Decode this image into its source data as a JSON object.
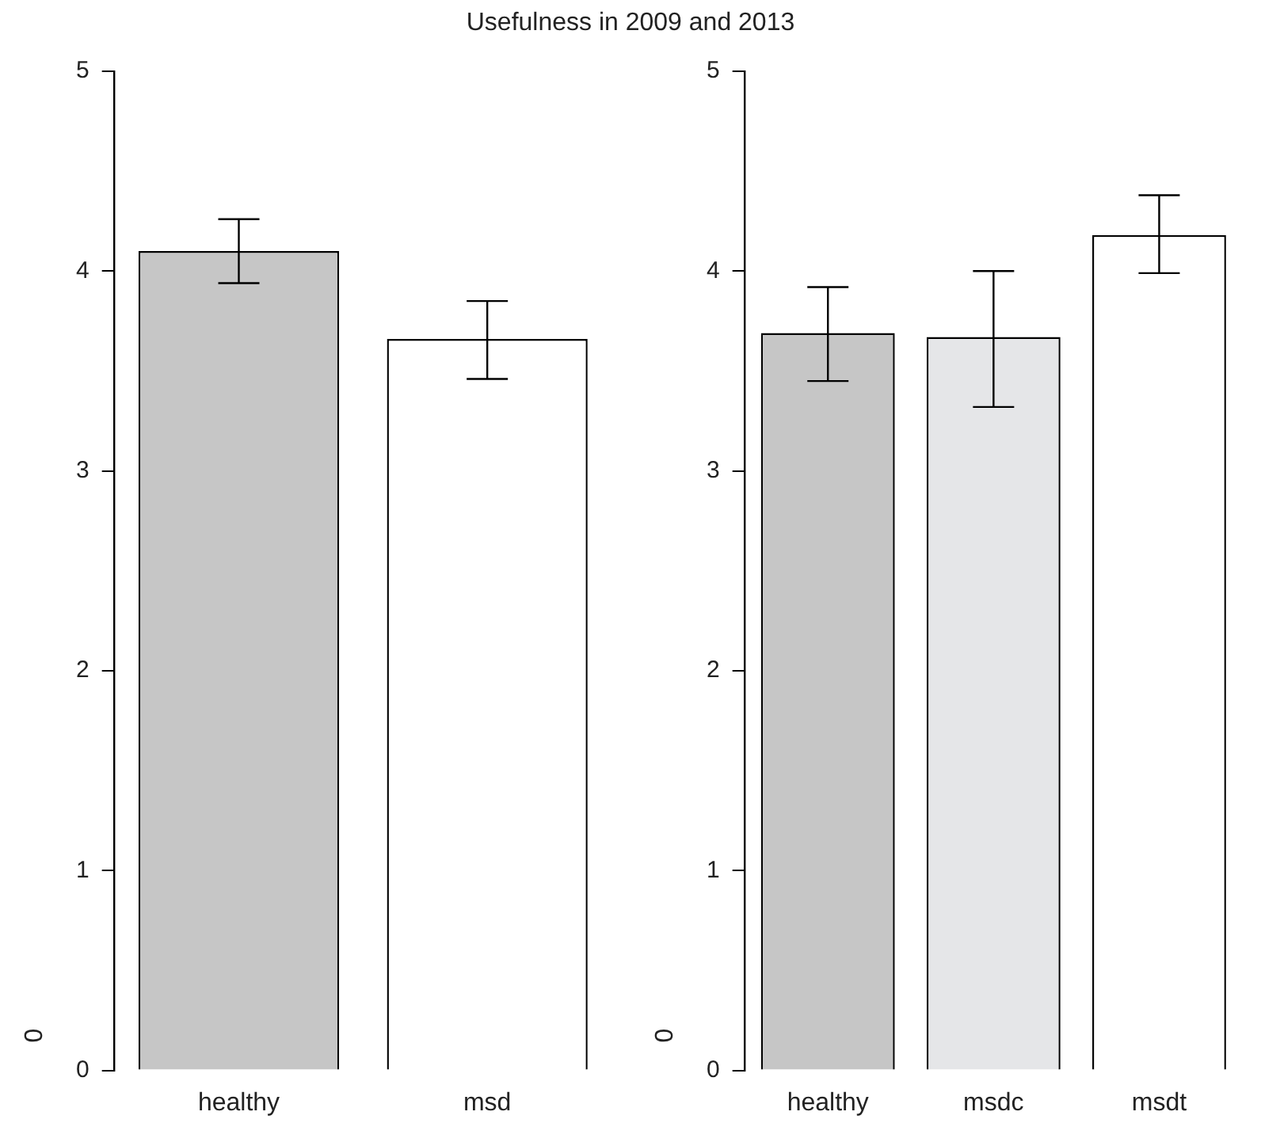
{
  "chart_data": [
    {
      "type": "bar",
      "title": "Usefulness in 2009 and 2013",
      "categories": [
        "healthy",
        "msd"
      ],
      "values": [
        4.1,
        3.66
      ],
      "colors": [
        "#c6c6c6",
        "#ffffff"
      ],
      "errors": [
        [
          3.94,
          4.26
        ],
        [
          3.46,
          3.85
        ]
      ],
      "ylim": [
        0,
        5
      ],
      "yticks": [
        0,
        1,
        2,
        3,
        4,
        5
      ],
      "grid": false,
      "legend": false,
      "annotations": [
        "0"
      ]
    },
    {
      "type": "bar",
      "categories": [
        "healthy",
        "msdc",
        "msdt"
      ],
      "values": [
        3.69,
        3.67,
        4.18
      ],
      "colors": [
        "#c6c6c6",
        "#e5e6e8",
        "#ffffff"
      ],
      "errors": [
        [
          3.45,
          3.92
        ],
        [
          3.32,
          4.0
        ],
        [
          3.99,
          4.38
        ]
      ],
      "ylim": [
        0,
        5
      ],
      "yticks": [
        0,
        1,
        2,
        3,
        4,
        5
      ],
      "grid": false,
      "legend": false,
      "annotations": [
        "0"
      ]
    }
  ]
}
